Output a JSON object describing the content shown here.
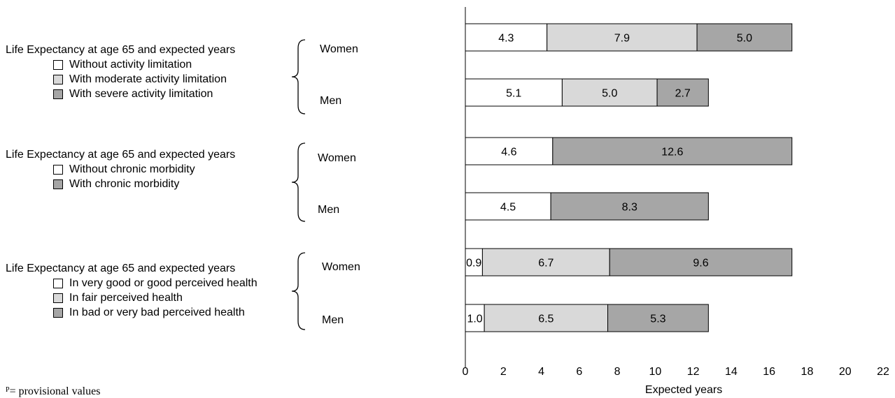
{
  "groups": [
    {
      "title": "Life Expectancy at age 65 and expected years",
      "items": [
        {
          "label": "Without activity limitation",
          "color": "#ffffff"
        },
        {
          "label": "With moderate activity limitation",
          "color": "#d9d9d9"
        },
        {
          "label": "With severe activity limitation",
          "color": "#a6a6a6"
        }
      ],
      "women_label": "Women",
      "men_label": "Men"
    },
    {
      "title": "Life Expectancy at age 65 and expected years",
      "items": [
        {
          "label": "Without chronic morbidity",
          "color": "#ffffff"
        },
        {
          "label": "With chronic morbidity",
          "color": "#a6a6a6"
        }
      ],
      "women_label": "Women",
      "men_label": "Men"
    },
    {
      "title": "Life Expectancy at age 65 and expected years",
      "items": [
        {
          "label": "In very good or good perceived health",
          "color": "#ffffff"
        },
        {
          "label": "In fair perceived health",
          "color": "#d9d9d9"
        },
        {
          "label": "In bad or very bad perceived health",
          "color": "#a6a6a6"
        }
      ],
      "women_label": "Women",
      "men_label": "Men"
    }
  ],
  "footnote": {
    "marker": "P",
    "text": "= provisional values"
  },
  "chart_data": {
    "type": "bar",
    "orientation": "horizontal",
    "stacked": true,
    "xlabel": "Expected years",
    "xlim": [
      0,
      22
    ],
    "xticks": [
      "0",
      "2",
      "4",
      "6",
      "8",
      "10",
      "12",
      "14",
      "16",
      "18",
      "20",
      "22"
    ],
    "grid": false,
    "bars": [
      {
        "segments": [
          {
            "value": 4.3,
            "label": "4.3",
            "color": "#ffffff"
          },
          {
            "value": 7.9,
            "label": "7.9",
            "color": "#d9d9d9"
          },
          {
            "value": 5.0,
            "label": "5.0",
            "color": "#a6a6a6"
          }
        ]
      },
      {
        "segments": [
          {
            "value": 5.1,
            "label": "5.1",
            "color": "#ffffff"
          },
          {
            "value": 5.0,
            "label": "5.0",
            "color": "#d9d9d9"
          },
          {
            "value": 2.7,
            "label": "2.7",
            "color": "#a6a6a6"
          }
        ]
      },
      {
        "segments": [
          {
            "value": 4.6,
            "label": "4.6",
            "color": "#ffffff"
          },
          {
            "value": 12.6,
            "label": "12.6",
            "color": "#a6a6a6"
          }
        ]
      },
      {
        "segments": [
          {
            "value": 4.5,
            "label": "4.5",
            "color": "#ffffff"
          },
          {
            "value": 8.3,
            "label": "8.3",
            "color": "#a6a6a6"
          }
        ]
      },
      {
        "segments": [
          {
            "value": 0.9,
            "label": "0.9",
            "color": "#ffffff"
          },
          {
            "value": 6.7,
            "label": "6.7",
            "color": "#d9d9d9"
          },
          {
            "value": 9.6,
            "label": "9.6",
            "color": "#a6a6a6"
          }
        ]
      },
      {
        "segments": [
          {
            "value": 1.0,
            "label": "1.0",
            "color": "#ffffff"
          },
          {
            "value": 6.5,
            "label": "6.5",
            "color": "#d9d9d9"
          },
          {
            "value": 5.3,
            "label": "5.3",
            "color": "#a6a6a6"
          }
        ]
      }
    ]
  }
}
